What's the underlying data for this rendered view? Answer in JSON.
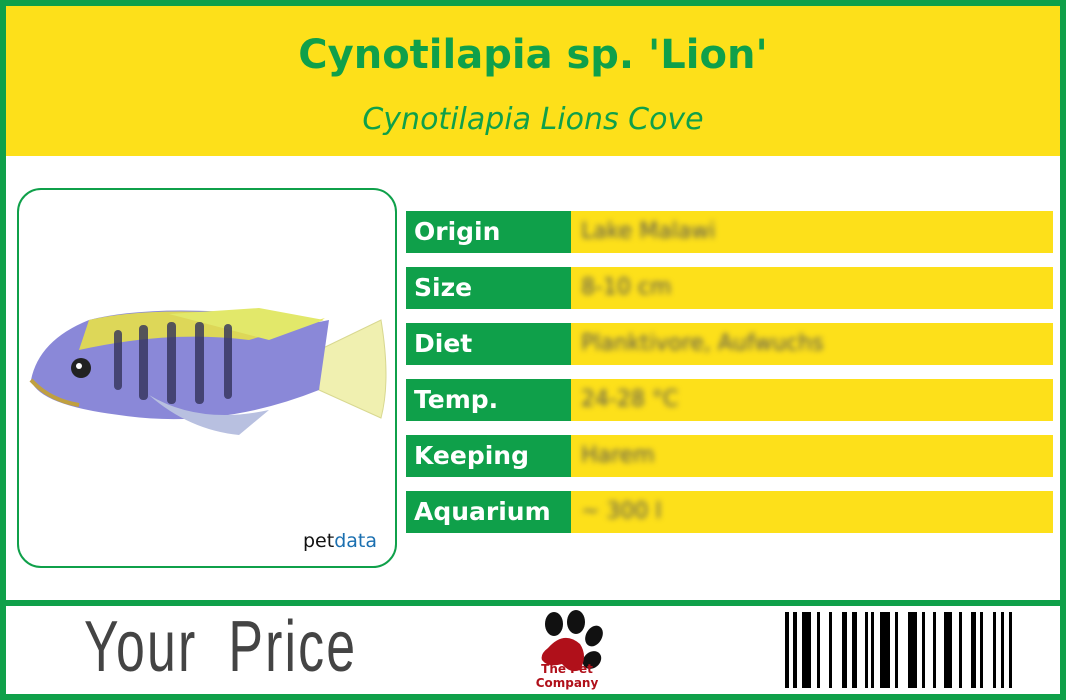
{
  "header": {
    "title": "Cynotilapia sp. 'Lion'",
    "subtitle": "Cynotilapia Lions Cove"
  },
  "image": {
    "watermark_prefix": "pet",
    "watermark_suffix": "data"
  },
  "facts": [
    {
      "label": "Origin",
      "value": "Lake Malawi"
    },
    {
      "label": "Size",
      "value": "8-10 cm"
    },
    {
      "label": "Diet",
      "value": "Planktivore, Aufwuchs"
    },
    {
      "label": "Temp.",
      "value": "24-28 °C"
    },
    {
      "label": "Keeping",
      "value": "Harem"
    },
    {
      "label": "Aquarium",
      "value": "~ 300 l"
    }
  ],
  "footer": {
    "price_label": "Your Price",
    "company": "The Pet Company"
  },
  "colors": {
    "brand_green": "#0fa04a",
    "brand_yellow": "#fde01a",
    "paw_red": "#b0101a"
  }
}
